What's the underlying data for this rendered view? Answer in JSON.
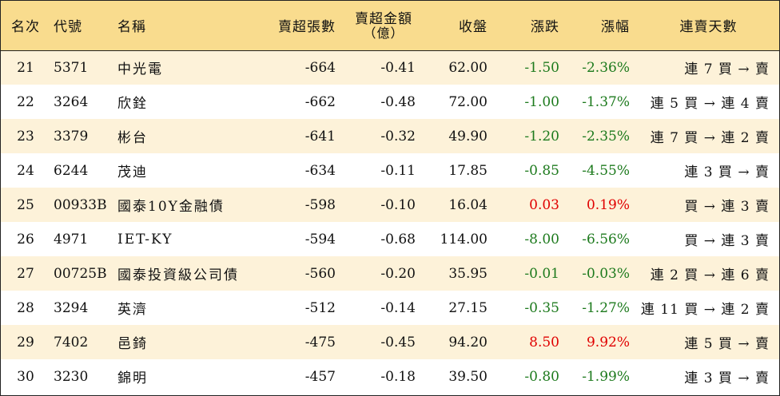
{
  "headers": {
    "rank": "名次",
    "code": "代號",
    "name": "名稱",
    "net_sell_lots": "賣超張數",
    "net_sell_amount_line1": "賣超金額",
    "net_sell_amount_line2": "（億）",
    "close": "收盤",
    "change": "漲跌",
    "change_pct": "漲幅",
    "streak": "連賣天數"
  },
  "colors": {
    "header_bg": "#f9dc8e",
    "odd_row_bg": "#fdf2d9",
    "down": "#1d7a1d",
    "up": "#e00000"
  },
  "rows": [
    {
      "rank": "21",
      "code": "5371",
      "name": "中光電",
      "lots": "-664",
      "amount": "-0.41",
      "close": "62.00",
      "change": "-1.50",
      "pct": "-2.36%",
      "streak": "連 7 買 → 賣",
      "dir": "down"
    },
    {
      "rank": "22",
      "code": "3264",
      "name": "欣銓",
      "lots": "-662",
      "amount": "-0.48",
      "close": "72.00",
      "change": "-1.00",
      "pct": "-1.37%",
      "streak": "連 5 買 → 連 4 賣",
      "dir": "down"
    },
    {
      "rank": "23",
      "code": "3379",
      "name": "彬台",
      "lots": "-641",
      "amount": "-0.32",
      "close": "49.90",
      "change": "-1.20",
      "pct": "-2.35%",
      "streak": "連 7 買 → 連 2 賣",
      "dir": "down"
    },
    {
      "rank": "24",
      "code": "6244",
      "name": "茂迪",
      "lots": "-634",
      "amount": "-0.11",
      "close": "17.85",
      "change": "-0.85",
      "pct": "-4.55%",
      "streak": "連 3 買 → 賣",
      "dir": "down"
    },
    {
      "rank": "25",
      "code": "00933B",
      "name": "國泰10Y金融債",
      "lots": "-598",
      "amount": "-0.10",
      "close": "16.04",
      "change": "0.03",
      "pct": "0.19%",
      "streak": "買 → 連 3 賣",
      "dir": "up"
    },
    {
      "rank": "26",
      "code": "4971",
      "name": "IET-KY",
      "lots": "-594",
      "amount": "-0.68",
      "close": "114.00",
      "change": "-8.00",
      "pct": "-6.56%",
      "streak": "買 → 連 3 賣",
      "dir": "down"
    },
    {
      "rank": "27",
      "code": "00725B",
      "name": "國泰投資級公司債",
      "lots": "-560",
      "amount": "-0.20",
      "close": "35.95",
      "change": "-0.01",
      "pct": "-0.03%",
      "streak": "連 2 買 → 連 6 賣",
      "dir": "down"
    },
    {
      "rank": "28",
      "code": "3294",
      "name": "英濟",
      "lots": "-512",
      "amount": "-0.14",
      "close": "27.15",
      "change": "-0.35",
      "pct": "-1.27%",
      "streak": "連 11 買 → 連 2 賣",
      "dir": "down"
    },
    {
      "rank": "29",
      "code": "7402",
      "name": "邑錡",
      "lots": "-475",
      "amount": "-0.45",
      "close": "94.20",
      "change": "8.50",
      "pct": "9.92%",
      "streak": "連 5 買 → 賣",
      "dir": "up"
    },
    {
      "rank": "30",
      "code": "3230",
      "name": "錦明",
      "lots": "-457",
      "amount": "-0.18",
      "close": "39.50",
      "change": "-0.80",
      "pct": "-1.99%",
      "streak": "連 3 買 → 賣",
      "dir": "down"
    }
  ]
}
